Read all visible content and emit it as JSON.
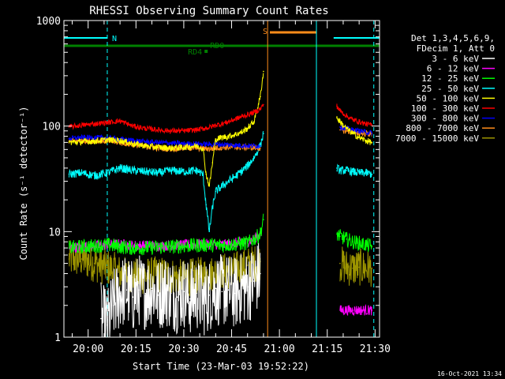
{
  "chart_data": {
    "type": "line",
    "title": "RHESSI Observing Summary Count Rates",
    "xlabel": "Start Time (23-Mar-03 19:52:22)",
    "ylabel": "Count Rate (s⁻¹ detector⁻¹)",
    "y_scale": "log",
    "ylim": [
      1,
      1000
    ],
    "y_ticks": [
      "1",
      "10",
      "100",
      "1000"
    ],
    "x_ticks": [
      "20:00",
      "20:15",
      "20:30",
      "20:45",
      "21:00",
      "21:15",
      "21:30"
    ],
    "xlim_minutes": [
      -7.6,
      91.4
    ],
    "x_tick_minutes": [
      0,
      15,
      30,
      45,
      60,
      75,
      90
    ],
    "legend_position": "top-right",
    "legend_header": [
      "Det 1,3,4,5,6,9,",
      "FDecim 1, Att 0"
    ],
    "data_gaps_minutes": [
      [
        56,
        77
      ]
    ],
    "series": [
      {
        "name": "3 - 6 keV",
        "color": "#ffffff",
        "x": [
          4,
          6,
          8,
          10,
          12,
          14,
          16,
          18,
          20,
          22,
          24,
          26,
          28,
          30,
          32,
          34,
          36,
          38,
          40,
          42,
          44,
          46,
          48,
          50,
          52,
          54
        ],
        "y": [
          1.5,
          1.3,
          2.0,
          2.6,
          2.8,
          2.4,
          2.8,
          2.6,
          2.9,
          2.5,
          2.8,
          2.6,
          2.4,
          2.7,
          2.3,
          2.6,
          2.2,
          2.5,
          2.9,
          2.7,
          2.8,
          2.6,
          2.9,
          3.0,
          3.4,
          4.0
        ]
      },
      {
        "name": "6 - 12 keV",
        "color": "#ff00ff",
        "x": [
          -6,
          -2,
          2,
          6,
          10,
          14,
          18,
          22,
          26,
          30,
          34,
          38,
          42,
          46,
          50,
          52,
          54,
          79,
          81,
          83,
          85,
          87,
          89
        ],
        "y": [
          7.0,
          7.2,
          7.3,
          7.5,
          7.6,
          7.4,
          7.4,
          7.3,
          7.4,
          7.5,
          7.6,
          7.6,
          7.5,
          7.8,
          8.0,
          8.5,
          9.5,
          1.8,
          1.8,
          1.8,
          1.8,
          1.8,
          1.8
        ]
      },
      {
        "name": "12 - 25 keV",
        "color": "#00ff00",
        "x": [
          -6,
          -2,
          2,
          6,
          10,
          14,
          18,
          22,
          26,
          30,
          34,
          38,
          42,
          46,
          50,
          52,
          54,
          55,
          78,
          79,
          81,
          83,
          85,
          87,
          89
        ],
        "y": [
          7.0,
          7.2,
          7.3,
          7.5,
          7.2,
          7.0,
          7.0,
          7.1,
          7.2,
          7.3,
          7.4,
          7.5,
          7.4,
          7.6,
          7.8,
          8.5,
          9.5,
          13.0,
          9.5,
          9.0,
          8.5,
          8.0,
          7.8,
          7.5,
          7.2
        ]
      },
      {
        "name": "25 - 50 keV",
        "color": "#00ffff",
        "x": [
          -6,
          -2,
          2,
          6,
          10,
          14,
          18,
          22,
          26,
          30,
          34,
          36,
          37,
          38,
          39,
          40,
          42,
          44,
          46,
          48,
          50,
          52,
          54,
          55,
          78,
          79,
          81,
          83,
          85,
          87,
          89
        ],
        "y": [
          35,
          36,
          34,
          36,
          40,
          38,
          37,
          36,
          38,
          37,
          38,
          35,
          18,
          10,
          17,
          24,
          27,
          30,
          33,
          37,
          42,
          50,
          65,
          85,
          40,
          38,
          38,
          37,
          36,
          36,
          35
        ]
      },
      {
        "name": "50 - 100 keV",
        "color": "#ffff00",
        "x": [
          -6,
          -2,
          2,
          6,
          10,
          14,
          18,
          22,
          26,
          30,
          34,
          36,
          37,
          38,
          39,
          40,
          42,
          44,
          46,
          48,
          50,
          52,
          54,
          55,
          78,
          79,
          81,
          83,
          85,
          87,
          89
        ],
        "y": [
          70,
          71,
          72,
          74,
          73,
          68,
          65,
          63,
          62,
          63,
          65,
          62,
          35,
          27,
          45,
          75,
          78,
          80,
          83,
          87,
          95,
          110,
          190,
          330,
          120,
          110,
          95,
          85,
          78,
          73,
          70
        ]
      },
      {
        "name": "100 - 300 keV",
        "color": "#ff0000",
        "x": [
          -6,
          -2,
          2,
          6,
          10,
          14,
          18,
          22,
          26,
          30,
          34,
          38,
          40,
          42,
          44,
          46,
          48,
          50,
          52,
          54,
          55,
          78,
          79,
          81,
          83,
          85,
          87,
          89
        ],
        "y": [
          98,
          102,
          105,
          108,
          112,
          100,
          95,
          92,
          90,
          90,
          92,
          97,
          102,
          105,
          110,
          116,
          122,
          128,
          135,
          145,
          160,
          155,
          140,
          125,
          115,
          110,
          105,
          102
        ]
      },
      {
        "name": "300 - 800 keV",
        "color": "#0000ff",
        "x": [
          -6,
          -2,
          2,
          6,
          10,
          14,
          18,
          22,
          26,
          30,
          34,
          38,
          42,
          46,
          50,
          54,
          79,
          81,
          83,
          85,
          87,
          89
        ],
        "y": [
          76,
          78,
          78,
          77,
          75,
          73,
          71,
          70,
          69,
          68,
          68,
          67,
          67,
          66,
          65,
          65,
          98,
          95,
          92,
          90,
          88,
          86
        ]
      },
      {
        "name": "800 - 7000 keV",
        "color": "#ff8c1a",
        "x": [
          -6,
          -2,
          2,
          6,
          10,
          14,
          18,
          22,
          26,
          30,
          34,
          38,
          42,
          46,
          50,
          54,
          79,
          81,
          83,
          85,
          87,
          89
        ],
        "y": [
          72,
          73,
          73,
          72,
          70,
          67,
          64,
          62,
          61,
          62,
          62,
          61,
          63,
          63,
          63,
          62,
          92,
          90,
          88,
          86,
          85,
          84
        ]
      },
      {
        "name": "7000 - 15000 keV",
        "color": "#9c9400",
        "x": [
          -6,
          -2,
          2,
          6,
          10,
          14,
          18,
          22,
          26,
          30,
          34,
          38,
          42,
          46,
          50,
          54,
          79,
          81,
          83,
          85,
          87,
          89
        ],
        "y": [
          5.5,
          5.5,
          5.0,
          4.6,
          4.0,
          3.7,
          3.8,
          3.9,
          3.8,
          3.6,
          3.8,
          3.9,
          4.2,
          4.3,
          4.8,
          5.2,
          5.0,
          4.6,
          4.5,
          4.6,
          4.5,
          4.5
        ]
      }
    ],
    "flags": [
      {
        "label": "N",
        "color": "#00ffff",
        "segments_minutes": [
          [
            -7.6,
            6
          ],
          [
            77,
            91.4
          ]
        ]
      },
      {
        "label": "S",
        "color": "#ff8c1a",
        "segments_minutes": [
          [
            57,
            71.5
          ]
        ]
      },
      {
        "label": "RD0",
        "color": "#008000",
        "segments_minutes": [
          [
            -7.6,
            91.4
          ]
        ]
      },
      {
        "label": "RD4",
        "color": "#008000",
        "segments_minutes": [
          [
            36.5,
            37.5
          ]
        ]
      }
    ],
    "vertical_markers_minutes": [
      {
        "x": -7.6,
        "color": "#00ffff",
        "style": "solid"
      },
      {
        "x": 6,
        "color": "#00ffff",
        "style": "dashed"
      },
      {
        "x": 56.3,
        "color": "#ff8c1a",
        "style": "solid"
      },
      {
        "x": 71.6,
        "color": "#00ffff",
        "style": "solid"
      },
      {
        "x": 89.6,
        "color": "#00ffff",
        "style": "dashed"
      }
    ]
  },
  "footer_date": "16-Oct-2021 13:34"
}
